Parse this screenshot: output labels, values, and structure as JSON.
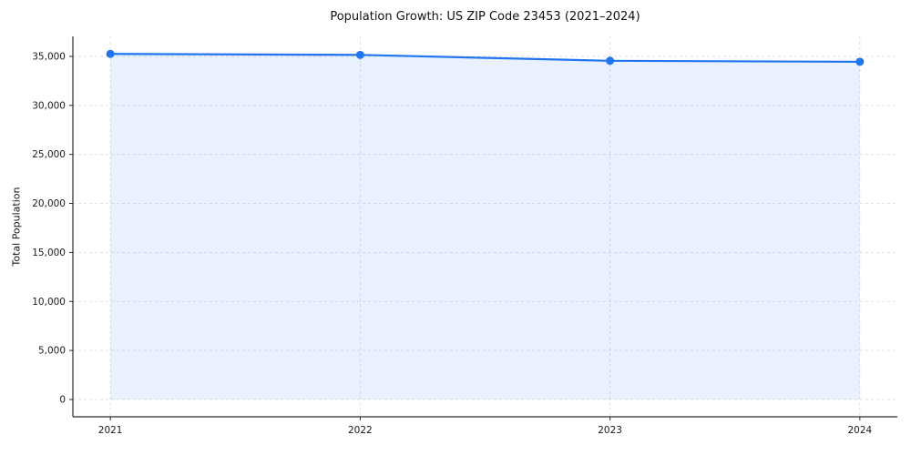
{
  "chart_data": {
    "type": "area",
    "title": "Population Growth: US ZIP Code 23453 (2021–2024)",
    "xlabel": "",
    "ylabel": "Total Population",
    "x": [
      2021,
      2022,
      2023,
      2024
    ],
    "series": [
      {
        "name": "Total Population",
        "values": [
          35250,
          35150,
          34550,
          34450
        ]
      }
    ],
    "xticks": [
      2021,
      2022,
      2023,
      2024
    ],
    "yticks": [
      0,
      5000,
      10000,
      15000,
      20000,
      25000,
      30000,
      35000
    ],
    "xlim": [
      2020.85,
      2024.15
    ],
    "ylim": [
      -1763,
      37036
    ],
    "grid": true,
    "legend": "none",
    "line_color": "#2176f0",
    "fill_color": "rgba(33,118,240,0.10)",
    "axis_color": "#2b2b2b",
    "grid_color": "#d9d9d9",
    "tick_label_color": "#1a1a1a"
  }
}
